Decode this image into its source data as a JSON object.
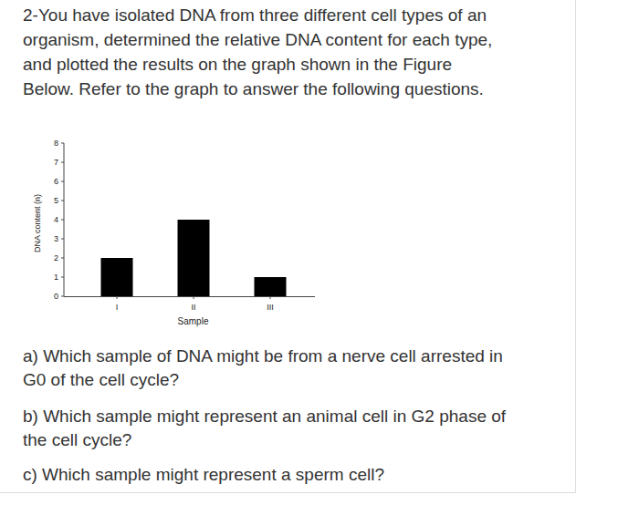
{
  "intro_lines": [
    "2-You have isolated DNA from three different cell types of an",
    "organism, determined the relative DNA content for each type,",
    "and plotted the results on the graph shown in the Figure",
    "Below. Refer to the graph to answer the following questions."
  ],
  "chart_data": {
    "type": "bar",
    "categories": [
      "I",
      "II",
      "III"
    ],
    "values": [
      2,
      4,
      1
    ],
    "color": "#000000",
    "x_label": "Sample",
    "y_label": "DNA content (n)",
    "ylim": [
      0,
      8
    ],
    "yticks": [
      0,
      1,
      2,
      3,
      4,
      5,
      6,
      7,
      8
    ],
    "grid": false
  },
  "questions": [
    {
      "lines": [
        "a) Which sample of DNA might be from a nerve cell arrested in",
        "G0 of the cell cycle?"
      ]
    },
    {
      "lines": [
        "b) Which sample might represent an animal cell in G2 phase of",
        "the cell cycle?"
      ]
    },
    {
      "lines": [
        "c) Which sample might represent a sperm cell?"
      ]
    }
  ]
}
